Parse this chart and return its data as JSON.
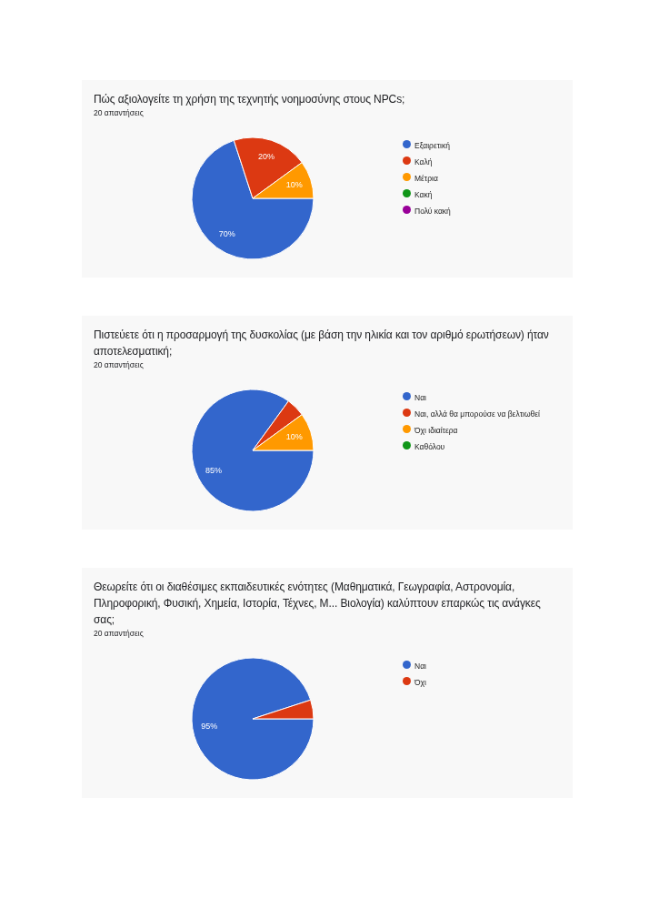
{
  "chart_data": [
    {
      "type": "pie",
      "title": "Πώς αξιολογείτε τη χρήση της τεχνητής νοημοσύνης στους NPCs;",
      "subtitle": "20 απαντήσεις",
      "categories": [
        "Εξαιρετική",
        "Καλή",
        "Μέτρια",
        "Κακή",
        "Πολύ κακή"
      ],
      "values": [
        70,
        20,
        10,
        0,
        0
      ],
      "colors": [
        "#3366cc",
        "#dc3912",
        "#ff9900",
        "#109618",
        "#990099"
      ],
      "value_labels": [
        "70%",
        "20%",
        "10%",
        null,
        null
      ],
      "legend": "right"
    },
    {
      "type": "pie",
      "title": "Πιστεύετε ότι η προσαρμογή της δυσκολίας (με βάση την ηλικία και τον αριθμό ερωτήσεων) ήταν αποτελεσματική;",
      "subtitle": "20 απαντήσεις",
      "categories": [
        "Ναι",
        "Ναι, αλλά θα μπορούσε να βελτιωθεί",
        "Όχι ιδιαίτερα",
        "Καθόλου"
      ],
      "values": [
        85,
        5,
        10,
        0
      ],
      "colors": [
        "#3366cc",
        "#dc3912",
        "#ff9900",
        "#109618"
      ],
      "value_labels": [
        "85%",
        null,
        "10%",
        null
      ],
      "legend": "right"
    },
    {
      "type": "pie",
      "title": "Θεωρείτε ότι οι διαθέσιμες εκπαιδευτικές ενότητες (Μαθηματικά, Γεωγραφία, Αστρονομία, Πληροφορική, Φυσική, Χημεία, Ιστορία, Τέχνες, Μ... Βιολογία) καλύπτουν επαρκώς τις ανάγκες σας;",
      "subtitle": "20 απαντήσεις",
      "categories": [
        "Ναι",
        "Όχι"
      ],
      "values": [
        95,
        5
      ],
      "colors": [
        "#3366cc",
        "#dc3912"
      ],
      "value_labels": [
        "95%",
        null
      ],
      "legend": "right"
    }
  ]
}
